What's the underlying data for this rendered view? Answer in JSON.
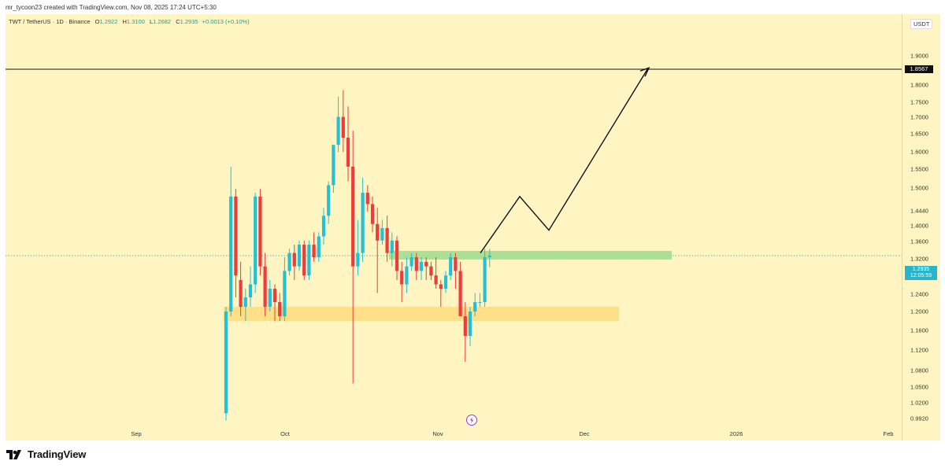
{
  "header": {
    "created_by": "mr_tycoon23 created with TradingView.com, Nov 08, 2025 17:24 UTC+5:30"
  },
  "legend": {
    "symbol": "TWT / TetherUS · 1D · Binance",
    "open_label": "O",
    "open": "1.2922",
    "high_label": "H",
    "high": "1.3100",
    "low_label": "L",
    "low": "1.2682",
    "close_label": "C",
    "close": "1.2935",
    "change": "+0.0013 (+0.10%)"
  },
  "price_axis": {
    "currency": "USDT",
    "ticks": [
      "1.9000",
      "1.8000",
      "1.7500",
      "1.7000",
      "1.6500",
      "1.6000",
      "1.5500",
      "1.5000",
      "1.4440",
      "1.4000",
      "1.3600",
      "1.3200",
      "1.2400",
      "1.2000",
      "1.1600",
      "1.1200",
      "1.0800",
      "1.0500",
      "1.0200",
      "0.9920"
    ],
    "resistance_label": "1.8567",
    "current_price": "1.2935",
    "countdown": "12:05:59"
  },
  "time_axis": {
    "labels": [
      "Sep",
      "Oct",
      "Nov",
      "Dec",
      "2026",
      "Feb"
    ]
  },
  "footer": {
    "brand": "TradingView"
  },
  "colors": {
    "background": "#fff5c2",
    "up": "#22c1d6",
    "down": "#ef3b3b",
    "support_zone": "#ffd978",
    "supply_zone": "#9edc8e",
    "current_badge": "#26b5c9"
  },
  "chart_data": {
    "type": "candlestick",
    "symbol": "TWT/USDT",
    "interval": "1D",
    "resistance": 1.8567,
    "current": 1.2935,
    "zones": [
      {
        "name": "support",
        "from": 1.15,
        "to": 1.18
      },
      {
        "name": "demand",
        "from": 1.285,
        "to": 1.305
      }
    ],
    "projection_path": [
      1.3,
      1.44,
      1.355,
      1.85
    ],
    "candles": [
      [
        0.98,
        1.17,
        0.97,
        1.18
      ],
      [
        1.17,
        1.44,
        1.16,
        1.52
      ],
      [
        1.44,
        1.25,
        1.2,
        1.46
      ],
      [
        1.24,
        1.18,
        1.16,
        1.28
      ],
      [
        1.18,
        1.2,
        1.15,
        1.22
      ],
      [
        1.2,
        1.23,
        1.18,
        1.27
      ],
      [
        1.23,
        1.44,
        1.21,
        1.45
      ],
      [
        1.44,
        1.27,
        1.25,
        1.46
      ],
      [
        1.27,
        1.18,
        1.16,
        1.3
      ],
      [
        1.18,
        1.22,
        1.17,
        1.24
      ],
      [
        1.22,
        1.19,
        1.15,
        1.23
      ],
      [
        1.19,
        1.16,
        1.15,
        1.21
      ],
      [
        1.16,
        1.26,
        1.15,
        1.29
      ],
      [
        1.26,
        1.3,
        1.25,
        1.31
      ],
      [
        1.3,
        1.27,
        1.24,
        1.32
      ],
      [
        1.27,
        1.32,
        1.26,
        1.33
      ],
      [
        1.32,
        1.25,
        1.24,
        1.33
      ],
      [
        1.25,
        1.32,
        1.24,
        1.33
      ],
      [
        1.32,
        1.29,
        1.28,
        1.35
      ],
      [
        1.29,
        1.34,
        1.28,
        1.35
      ],
      [
        1.34,
        1.39,
        1.32,
        1.41
      ],
      [
        1.39,
        1.47,
        1.37,
        1.48
      ],
      [
        1.47,
        1.58,
        1.45,
        1.58
      ],
      [
        1.58,
        1.66,
        1.56,
        1.72
      ],
      [
        1.66,
        1.6,
        1.56,
        1.74
      ],
      [
        1.6,
        1.52,
        1.48,
        1.69
      ],
      [
        1.52,
        1.27,
        1.03,
        1.62
      ],
      [
        1.27,
        1.3,
        1.25,
        1.38
      ],
      [
        1.3,
        1.45,
        1.28,
        1.49
      ],
      [
        1.45,
        1.42,
        1.4,
        1.47
      ],
      [
        1.42,
        1.37,
        1.35,
        1.44
      ],
      [
        1.37,
        1.33,
        1.21,
        1.41
      ],
      [
        1.33,
        1.36,
        1.32,
        1.38
      ],
      [
        1.36,
        1.3,
        1.28,
        1.39
      ],
      [
        1.3,
        1.33,
        1.27,
        1.35
      ],
      [
        1.33,
        1.26,
        1.24,
        1.34
      ],
      [
        1.26,
        1.23,
        1.19,
        1.28
      ],
      [
        1.23,
        1.27,
        1.21,
        1.29
      ],
      [
        1.27,
        1.29,
        1.26,
        1.3
      ],
      [
        1.29,
        1.26,
        1.24,
        1.3
      ],
      [
        1.26,
        1.28,
        1.24,
        1.29
      ],
      [
        1.28,
        1.27,
        1.24,
        1.29
      ],
      [
        1.27,
        1.25,
        1.24,
        1.28
      ],
      [
        1.25,
        1.23,
        1.22,
        1.29
      ],
      [
        1.23,
        1.22,
        1.18,
        1.24
      ],
      [
        1.22,
        1.25,
        1.21,
        1.26
      ],
      [
        1.25,
        1.29,
        1.24,
        1.3
      ],
      [
        1.29,
        1.26,
        1.22,
        1.3
      ],
      [
        1.26,
        1.16,
        1.16,
        1.28
      ],
      [
        1.16,
        1.12,
        1.07,
        1.19
      ],
      [
        1.12,
        1.17,
        1.1,
        1.18
      ],
      [
        1.17,
        1.19,
        1.16,
        1.21
      ],
      [
        1.19,
        1.19,
        1.18,
        1.21
      ],
      [
        1.19,
        1.29,
        1.18,
        1.31
      ],
      [
        1.29,
        1.2935,
        1.2682,
        1.31
      ]
    ]
  }
}
